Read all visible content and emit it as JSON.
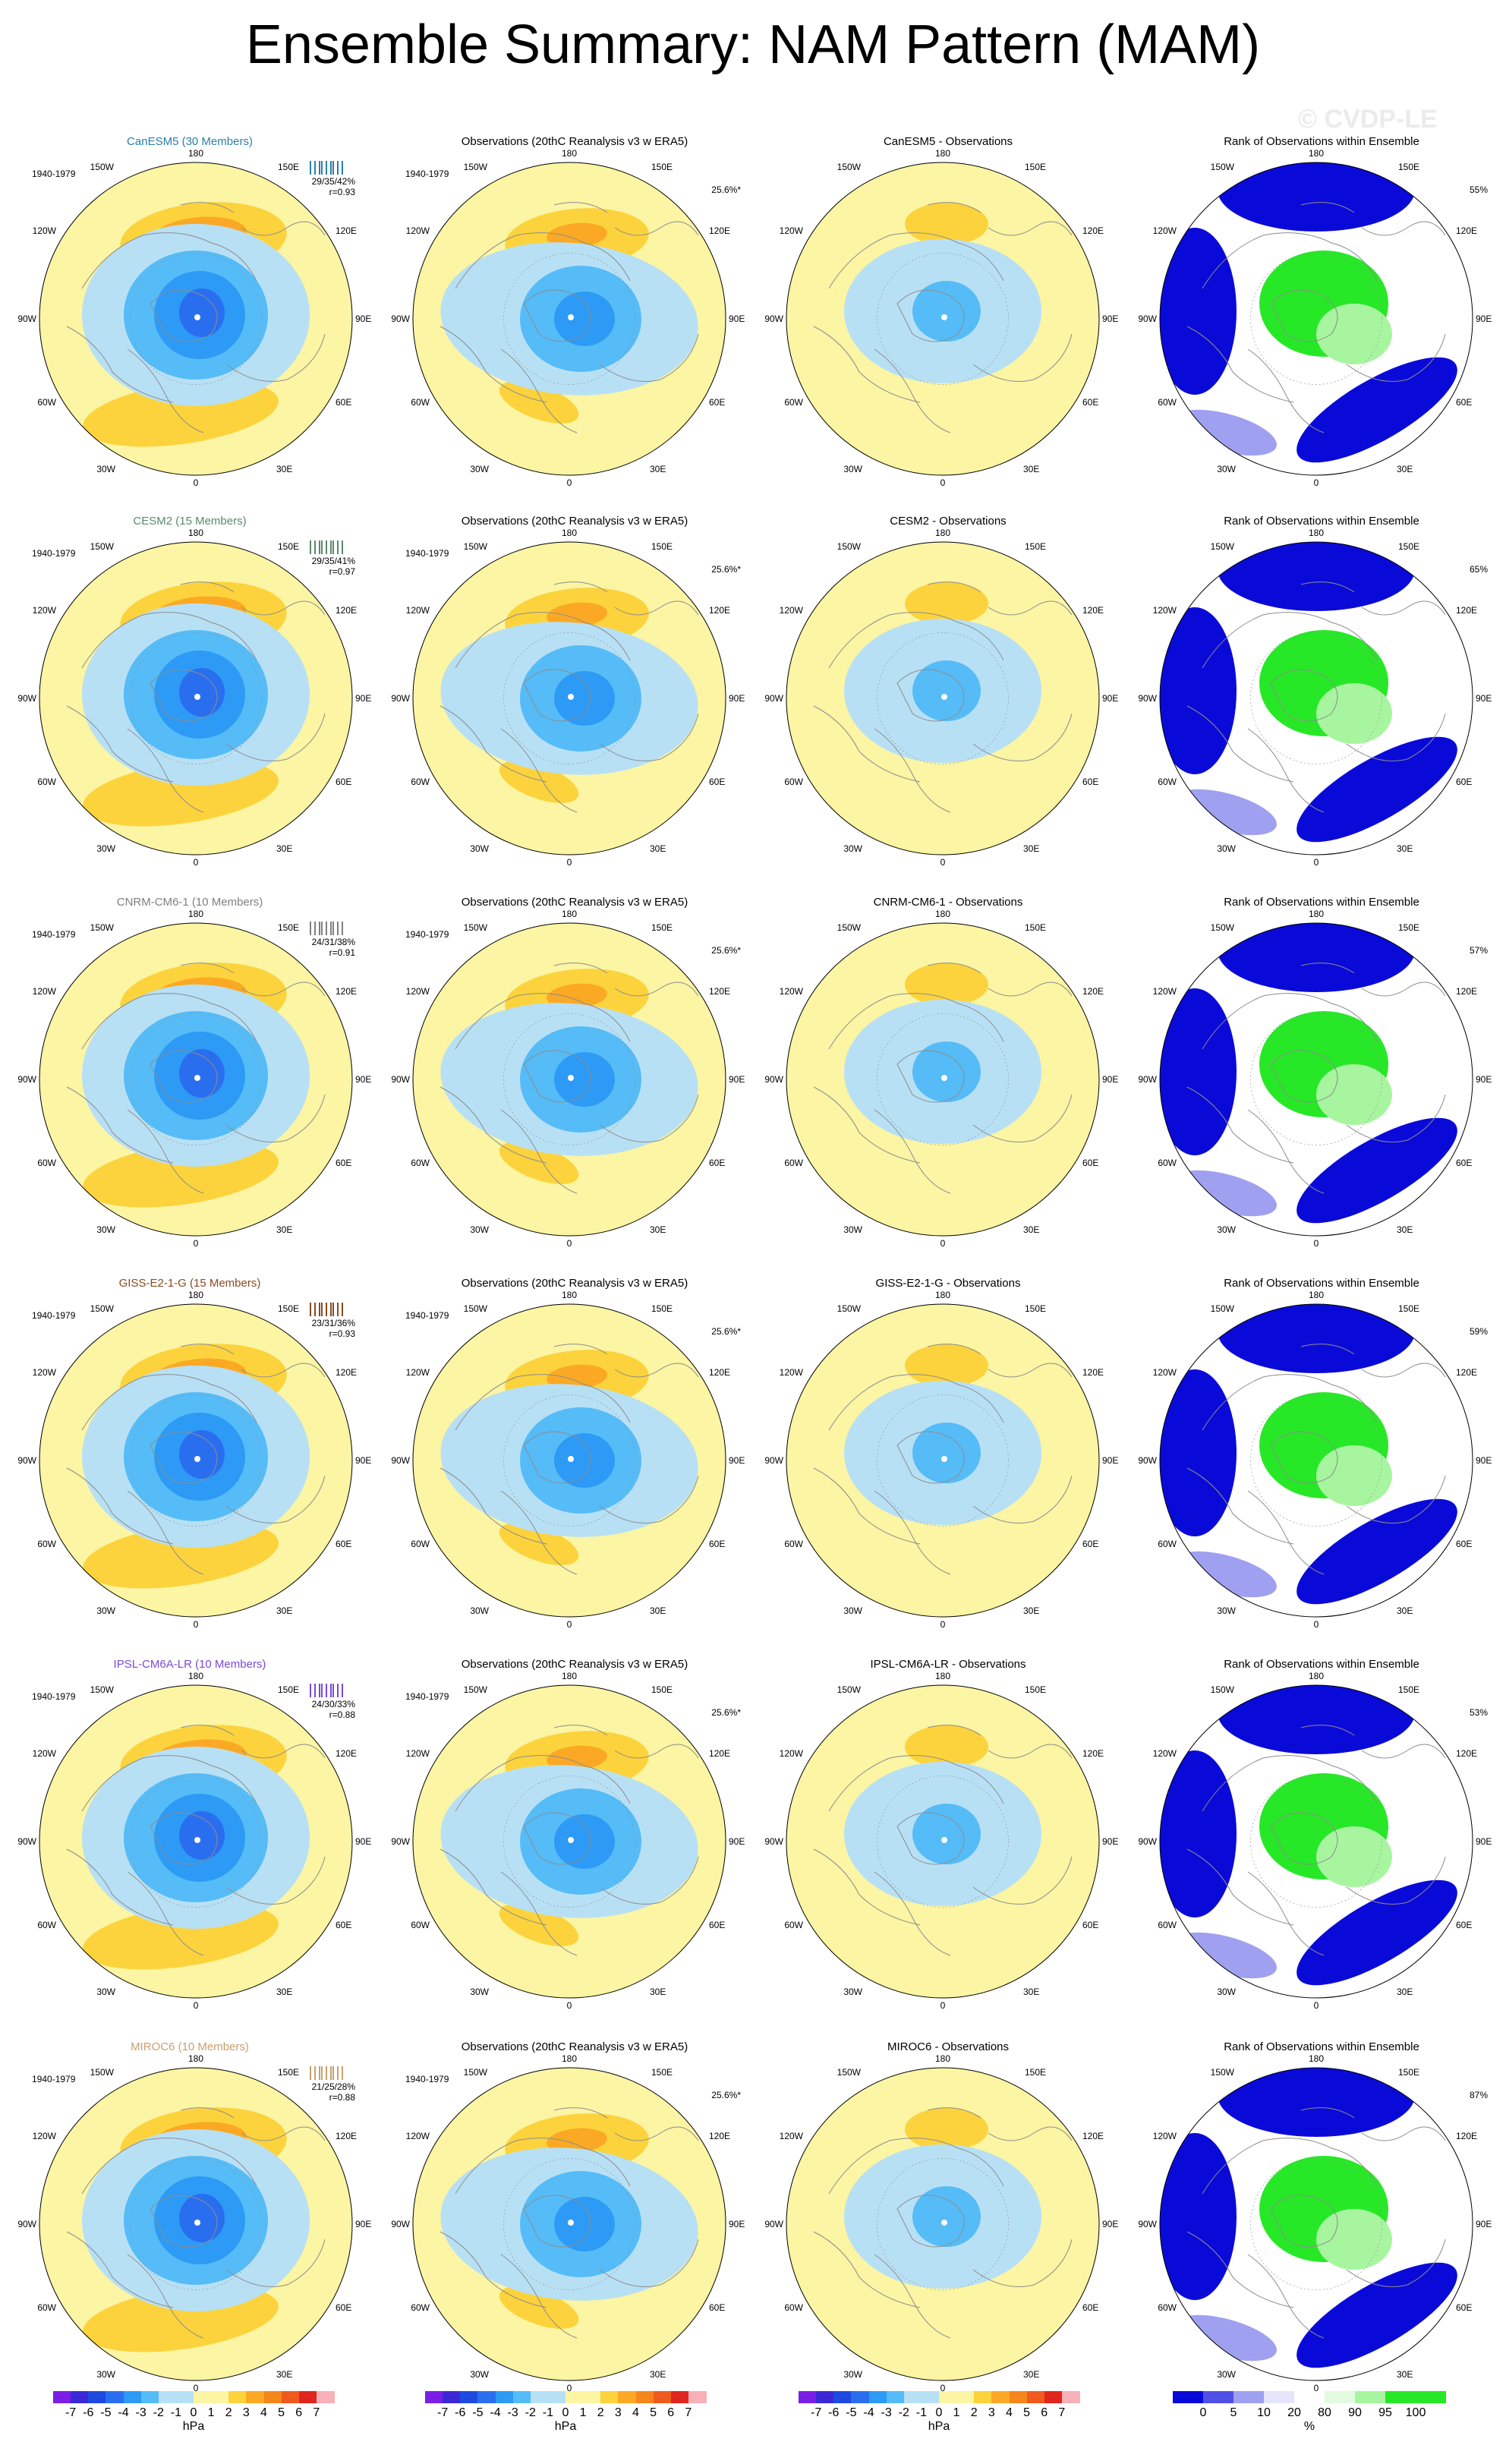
{
  "title": "Ensemble Summary: NAM Pattern (MAM)",
  "watermark": "© CVDP-LE",
  "colors": {
    "neg7": "#7b1ee6",
    "neg6": "#3c28d6",
    "neg5": "#1e4ae0",
    "neg4": "#2a6ef0",
    "neg3": "#2d9af5",
    "neg2": "#55bcf7",
    "neg1": "#b8e0f5",
    "pos1": "#fbf5a4",
    "pos2": "#fcd33c",
    "pos3": "#fba925",
    "pos4": "#f5861c",
    "pos5": "#ef5a1e",
    "pos6": "#e0261e",
    "pos7": "#f7b0b8",
    "rank0": "#0a0ad8",
    "rank5": "#5050e6",
    "rank10": "#a0a0f0",
    "rank20": "#e4e4fa",
    "rank80": "#ffffff",
    "rank90": "#e2fae0",
    "rank95": "#a8f5a0",
    "rank100": "#27e827",
    "coast": "#8c8c8c"
  },
  "labels": {
    "period": "1940-1979",
    "obs_title": "Observations (20thC Reanalysis v3 w ERA5)",
    "obs_pct": "25.6%*",
    "rank_title": "Rank of Observations within Ensemble",
    "lon_180": "180",
    "lon_150W": "150W",
    "lon_150E": "150E",
    "lon_120W": "120W",
    "lon_120E": "120E",
    "lon_90W": "90W",
    "lon_90E": "90E",
    "lon_60W": "60W",
    "lon_60E": "60E",
    "lon_30W": "30W",
    "lon_30E": "30E",
    "lon_0": "0"
  },
  "models": [
    {
      "title": "CanESM5 (30 Members)",
      "color": "#2a7fa8",
      "stats": "29/35/42%",
      "r": "r=0.93",
      "diff_title": "CanESM5 - Observations",
      "rank_pct": "55%"
    },
    {
      "title": "CESM2 (15 Members)",
      "color": "#5a8a6a",
      "stats": "29/35/41%",
      "r": "r=0.97",
      "diff_title": "CESM2 - Observations",
      "rank_pct": "65%"
    },
    {
      "title": "CNRM-CM6-1 (10 Members)",
      "color": "#808080",
      "stats": "24/31/38%",
      "r": "r=0.91",
      "diff_title": "CNRM-CM6-1 - Observations",
      "rank_pct": "57%"
    },
    {
      "title": "GISS-E2-1-G (15 Members)",
      "color": "#8a4a1e",
      "stats": "23/31/36%",
      "r": "r=0.93",
      "diff_title": "GISS-E2-1-G - Observations",
      "rank_pct": "59%"
    },
    {
      "title": "IPSL-CM6A-LR (10 Members)",
      "color": "#7a4ad8",
      "stats": "24/30/33%",
      "r": "r=0.88",
      "diff_title": "IPSL-CM6A-LR - Observations",
      "rank_pct": "53%"
    },
    {
      "title": "MIROC6 (10 Members)",
      "color": "#c8a070",
      "stats": "21/25/28%",
      "r": "r=0.88",
      "diff_title": "MIROC6 - Observations",
      "rank_pct": "87%"
    }
  ],
  "legend_hpa": {
    "ticks": [
      "-7",
      "-6",
      "-5",
      "-4",
      "-3",
      "-2",
      "-1",
      "0",
      "1",
      "2",
      "3",
      "4",
      "5",
      "6",
      "7"
    ],
    "unit": "hPa"
  },
  "legend_rank": {
    "ticks": [
      "0",
      "5",
      "10",
      "20",
      "80",
      "90",
      "95",
      "100"
    ],
    "unit": "%"
  },
  "chart_data": {
    "type": "heatmap",
    "title": "Ensemble Summary: NAM Pattern (MAM)",
    "projection": "north polar stereographic",
    "period": "1940-1979",
    "contour_levels_hPa": [
      -7,
      -6,
      -5,
      -4,
      -3,
      -2,
      -1,
      0,
      1,
      2,
      3,
      4,
      5,
      6,
      7
    ],
    "rank_levels_pct": [
      0,
      5,
      10,
      20,
      80,
      90,
      95,
      100
    ],
    "observations": {
      "source": "20thC Reanalysis v3 w ERA5",
      "pct_variance_explained": "25.6%*"
    },
    "models": [
      {
        "name": "CanESM5",
        "members": 30,
        "pct_variance_explained": [
          29,
          35,
          42
        ],
        "pattern_correlation": 0.93,
        "rank_pct": 55
      },
      {
        "name": "CESM2",
        "members": 15,
        "pct_variance_explained": [
          29,
          35,
          41
        ],
        "pattern_correlation": 0.97,
        "rank_pct": 65
      },
      {
        "name": "CNRM-CM6-1",
        "members": 10,
        "pct_variance_explained": [
          24,
          31,
          38
        ],
        "pattern_correlation": 0.91,
        "rank_pct": 57
      },
      {
        "name": "GISS-E2-1-G",
        "members": 15,
        "pct_variance_explained": [
          23,
          31,
          36
        ],
        "pattern_correlation": 0.93,
        "rank_pct": 59
      },
      {
        "name": "IPSL-CM6A-LR",
        "members": 10,
        "pct_variance_explained": [
          24,
          30,
          33
        ],
        "pattern_correlation": 0.88,
        "rank_pct": 53
      },
      {
        "name": "MIROC6",
        "members": 10,
        "pct_variance_explained": [
          21,
          25,
          28
        ],
        "pattern_correlation": 0.88,
        "rank_pct": 87
      }
    ]
  }
}
